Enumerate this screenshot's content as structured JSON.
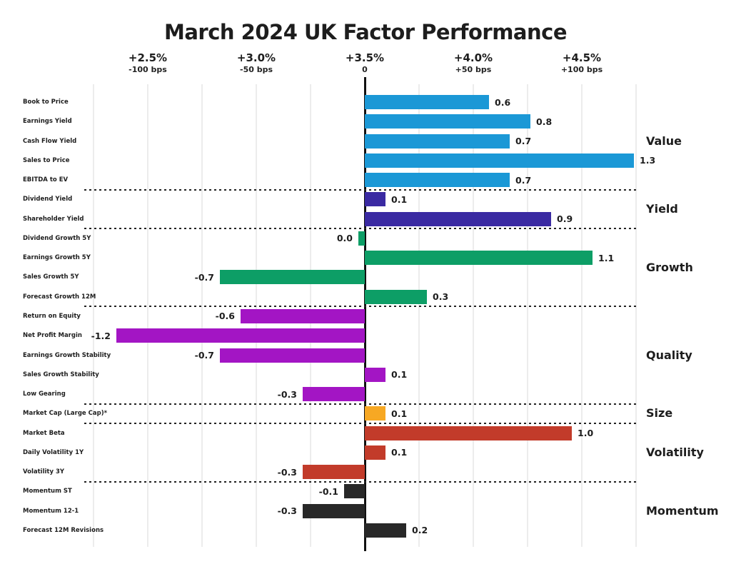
{
  "title": "March 2024 UK Factor Performance",
  "chart_data": {
    "type": "bar",
    "orientation": "horizontal",
    "title": "March 2024 UK Factor Performance",
    "x_axis": {
      "top_labels": [
        "+2.5%",
        "+3.0%",
        "+3.5%",
        "+4.0%",
        "+4.5%"
      ],
      "sub_labels": [
        "-100 bps",
        "-50 bps",
        "0",
        "+50 bps",
        "+100 bps"
      ],
      "zero_label": "+3.5%",
      "grid": true
    },
    "legend_position": "right",
    "groups": [
      {
        "name": "Value",
        "color": "#1B98D6",
        "factors": [
          {
            "label": "Book to Price",
            "value": 0.6
          },
          {
            "label": "Earnings Yield",
            "value": 0.8
          },
          {
            "label": "Cash Flow Yield",
            "value": 0.7
          },
          {
            "label": "Sales to Price",
            "value": 1.3
          },
          {
            "label": "EBITDA to EV",
            "value": 0.7
          }
        ]
      },
      {
        "name": "Yield",
        "color": "#3A2AA2",
        "factors": [
          {
            "label": "Dividend Yield",
            "value": 0.1
          },
          {
            "label": "Shareholder Yield",
            "value": 0.9
          }
        ]
      },
      {
        "name": "Growth",
        "color": "#0D9E66",
        "factors": [
          {
            "label": "Dividend Growth 5Y",
            "value": 0.0
          },
          {
            "label": "Earnings Growth 5Y",
            "value": 1.1
          },
          {
            "label": "Sales Growth 5Y",
            "value": -0.7
          },
          {
            "label": "Forecast Growth 12M",
            "value": 0.3
          }
        ]
      },
      {
        "name": "Quality",
        "color": "#A315C4",
        "factors": [
          {
            "label": "Return on Equity",
            "value": -0.6
          },
          {
            "label": "Net Profit Margin",
            "value": -1.2
          },
          {
            "label": "Earnings Growth Stability",
            "value": -0.7
          },
          {
            "label": "Sales Growth Stability",
            "value": 0.1
          },
          {
            "label": "Low Gearing",
            "value": -0.3
          }
        ]
      },
      {
        "name": "Size",
        "color": "#F7A823",
        "factors": [
          {
            "label": "Market Cap (Large Cap)*",
            "value": 0.1
          }
        ]
      },
      {
        "name": "Volatility",
        "color": "#C23B2A",
        "factors": [
          {
            "label": "Market Beta",
            "value": 1.0
          },
          {
            "label": "Daily Volatility 1Y",
            "value": 0.1
          },
          {
            "label": "Volatility 3Y",
            "value": -0.3
          }
        ]
      },
      {
        "name": "Momentum",
        "color": "#282828",
        "factors": [
          {
            "label": "Momentum ST",
            "value": -0.1
          },
          {
            "label": "Momentum 12-1",
            "value": -0.3
          },
          {
            "label": "Forecast 12M Revisions",
            "value": 0.2
          }
        ]
      }
    ]
  }
}
